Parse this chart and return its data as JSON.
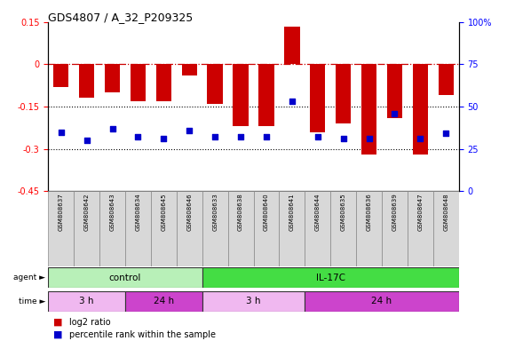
{
  "title": "GDS4807 / A_32_P209325",
  "samples": [
    "GSM808637",
    "GSM808642",
    "GSM808643",
    "GSM808634",
    "GSM808645",
    "GSM808646",
    "GSM808633",
    "GSM808638",
    "GSM808640",
    "GSM808641",
    "GSM808644",
    "GSM808635",
    "GSM808636",
    "GSM808639",
    "GSM808647",
    "GSM808648"
  ],
  "log2_ratio": [
    -0.08,
    -0.12,
    -0.1,
    -0.13,
    -0.13,
    -0.04,
    -0.14,
    -0.22,
    -0.22,
    0.135,
    -0.24,
    -0.21,
    -0.32,
    -0.19,
    -0.32,
    -0.11
  ],
  "percentile_rank": [
    35,
    30,
    37,
    32,
    31,
    36,
    32,
    32,
    32,
    53,
    32,
    31,
    31,
    46,
    31,
    34
  ],
  "bar_color": "#cc0000",
  "dot_color": "#0000cc",
  "ylim_left": [
    -0.45,
    0.15
  ],
  "ylim_right": [
    0,
    100
  ],
  "yticks_left": [
    -0.45,
    -0.3,
    -0.15,
    0,
    0.15
  ],
  "yticks_right": [
    0,
    25,
    50,
    75,
    100
  ],
  "ytick_labels_right": [
    "0",
    "25",
    "50",
    "75",
    "100%"
  ],
  "hline_zero": 0,
  "hline_dotted": [
    -0.15,
    -0.3
  ],
  "agent_groups": [
    {
      "label": "control",
      "start": 0,
      "end": 5,
      "color": "#b8f0b8"
    },
    {
      "label": "IL-17C",
      "start": 6,
      "end": 15,
      "color": "#44dd44"
    }
  ],
  "time_groups": [
    {
      "label": "3 h",
      "start": 0,
      "end": 2,
      "color": "#f0b8f0"
    },
    {
      "label": "24 h",
      "start": 3,
      "end": 5,
      "color": "#cc44cc"
    },
    {
      "label": "3 h",
      "start": 6,
      "end": 9,
      "color": "#f0b8f0"
    },
    {
      "label": "24 h",
      "start": 10,
      "end": 15,
      "color": "#cc44cc"
    }
  ],
  "legend_items": [
    {
      "color": "#cc0000",
      "label": "log2 ratio"
    },
    {
      "color": "#0000cc",
      "label": "percentile rank within the sample"
    }
  ],
  "agent_row_label": "agent",
  "time_row_label": "time",
  "background_color": "#ffffff",
  "plot_bg_color": "#ffffff",
  "sample_label_bg": "#d8d8d8"
}
